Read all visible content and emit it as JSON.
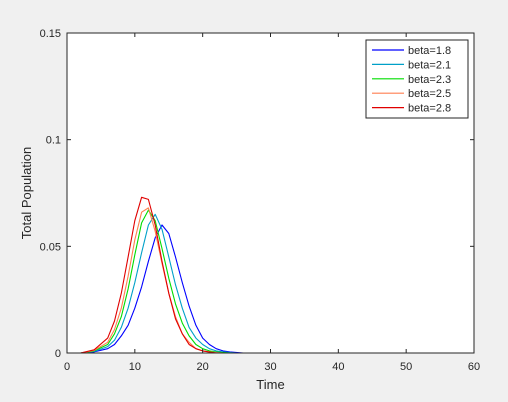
{
  "figure": {
    "background": "#f0f0f0",
    "axes_background": "#ffffff"
  },
  "chart_data": {
    "type": "line",
    "title": "",
    "xlabel": "Time",
    "ylabel": "Total Population",
    "xlim": [
      0,
      60
    ],
    "ylim": [
      0,
      0.15
    ],
    "xticks": [
      0,
      10,
      20,
      30,
      40,
      50,
      60
    ],
    "xtick_labels": [
      "0",
      "10",
      "20",
      "30",
      "40",
      "50",
      "60"
    ],
    "yticks": [
      0,
      0.05,
      0.1,
      0.15
    ],
    "ytick_labels": [
      "0",
      "0.05",
      "0.1",
      "0.15"
    ],
    "grid": false,
    "legend_position": "top-right",
    "series": [
      {
        "name": "beta=1.8",
        "color": "#0000ff",
        "x": [
          0,
          2,
          4,
          6,
          7,
          8,
          9,
          10,
          11,
          12,
          13,
          14,
          15,
          16,
          17,
          18,
          19,
          20,
          21,
          22,
          23,
          24,
          26,
          30,
          60
        ],
        "y": [
          0,
          0,
          0.0005,
          0.002,
          0.004,
          0.008,
          0.013,
          0.021,
          0.031,
          0.043,
          0.054,
          0.06,
          0.056,
          0.045,
          0.033,
          0.022,
          0.013,
          0.007,
          0.004,
          0.002,
          0.001,
          0.0005,
          0,
          0,
          0
        ]
      },
      {
        "name": "beta=2.1",
        "color": "#00a0c8",
        "x": [
          0,
          2,
          4,
          6,
          7,
          8,
          9,
          10,
          11,
          12,
          13,
          14,
          15,
          16,
          17,
          18,
          19,
          20,
          21,
          22,
          23,
          25,
          30,
          60
        ],
        "y": [
          0,
          0,
          0.0007,
          0.003,
          0.006,
          0.012,
          0.021,
          0.033,
          0.047,
          0.06,
          0.065,
          0.058,
          0.045,
          0.032,
          0.021,
          0.012,
          0.007,
          0.004,
          0.002,
          0.001,
          0.0005,
          0,
          0,
          0
        ]
      },
      {
        "name": "beta=2.3",
        "color": "#00dd00",
        "x": [
          0,
          2,
          4,
          6,
          7,
          8,
          9,
          10,
          11,
          12,
          13,
          14,
          15,
          16,
          17,
          18,
          19,
          20,
          21,
          22,
          24,
          30,
          60
        ],
        "y": [
          0,
          0,
          0.001,
          0.004,
          0.009,
          0.017,
          0.03,
          0.046,
          0.061,
          0.067,
          0.062,
          0.049,
          0.035,
          0.023,
          0.014,
          0.008,
          0.004,
          0.002,
          0.001,
          0.0005,
          0,
          0,
          0
        ]
      },
      {
        "name": "beta=2.5",
        "color": "#ff7f50",
        "x": [
          0,
          2,
          4,
          6,
          7,
          8,
          9,
          10,
          11,
          12,
          13,
          14,
          15,
          16,
          17,
          18,
          19,
          20,
          21,
          23,
          30,
          60
        ],
        "y": [
          0,
          0,
          0.0012,
          0.005,
          0.011,
          0.021,
          0.036,
          0.053,
          0.066,
          0.068,
          0.057,
          0.042,
          0.028,
          0.017,
          0.009,
          0.005,
          0.002,
          0.001,
          0.0005,
          0,
          0,
          0
        ]
      },
      {
        "name": "beta=2.8",
        "color": "#e00000",
        "x": [
          0,
          2,
          4,
          6,
          7,
          8,
          9,
          10,
          11,
          12,
          13,
          14,
          15,
          16,
          17,
          18,
          19,
          20,
          22,
          30,
          60
        ],
        "y": [
          0,
          0,
          0.0015,
          0.007,
          0.015,
          0.028,
          0.045,
          0.062,
          0.073,
          0.072,
          0.06,
          0.043,
          0.028,
          0.016,
          0.009,
          0.004,
          0.002,
          0.001,
          0,
          0,
          0
        ]
      }
    ]
  }
}
